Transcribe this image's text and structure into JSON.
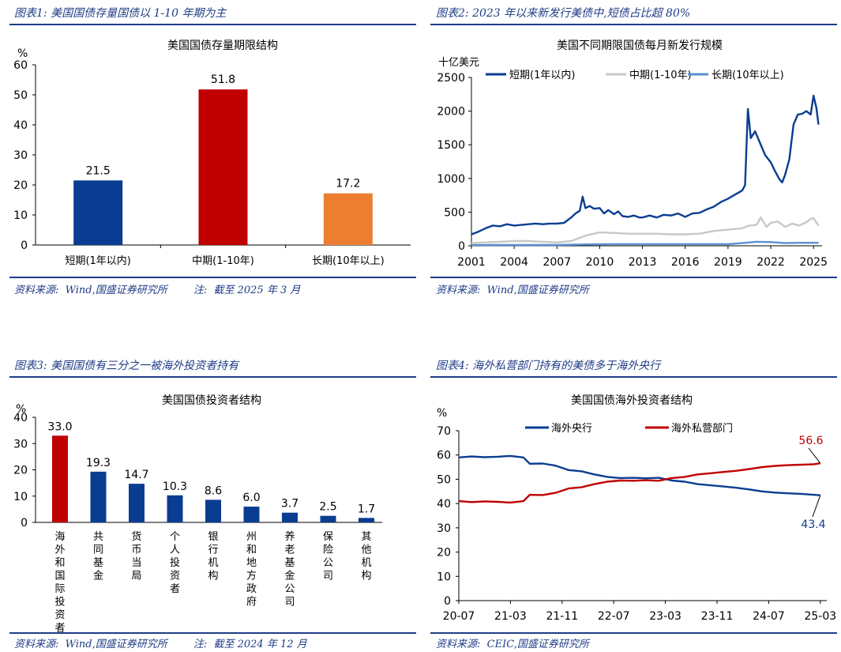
{
  "panels": [
    {
      "heading": "图表1:  美国国债存量国债以 1-10 年期为主",
      "source": "资料来源:  Wind,国盛证券研究所        注:  截至 2025 年 3 月"
    },
    {
      "heading": "图表2:  2023 年以来新发行美债中,短债占比超 80%",
      "source": "资料来源:  Wind,国盛证券研究所"
    },
    {
      "heading": "图表3:  美国国债有三分之一被海外投资者持有",
      "source": "资料来源:  Wind,国盛证券研究所        注:  截至 2024 年 12 月"
    },
    {
      "heading": "图表4:  海外私营部门持有的美债多于海外央行",
      "source": "资料来源:  CEIC,国盛证券研究所"
    }
  ],
  "chart_data": [
    {
      "type": "bar",
      "title": "美国国债存量期限结构",
      "ylabel": "%",
      "ylim": [
        0,
        60
      ],
      "yticks": [
        0,
        10,
        20,
        30,
        40,
        50,
        60
      ],
      "categories": [
        "短期(1年以内)",
        "中期(1-10年)",
        "长期(10年以上)"
      ],
      "values": [
        21.5,
        51.8,
        17.2
      ],
      "colors": [
        "#0a3d91",
        "#c00000",
        "#ed7d31"
      ],
      "grid": false
    },
    {
      "type": "line",
      "title": "美国不同期限国债每月新发行规模",
      "ylabel": "十亿美元",
      "ylim": [
        0,
        2500
      ],
      "yticks": [
        0,
        500,
        1000,
        1500,
        2000,
        2500
      ],
      "xlim": [
        2001,
        2025.6
      ],
      "xticks": [
        2001,
        2004,
        2007,
        2010,
        2013,
        2016,
        2019,
        2022,
        2025
      ],
      "legend": "top",
      "series": [
        {
          "name": "短期(1年以内)",
          "color": "#0a3d91",
          "points": [
            [
              2001,
              170
            ],
            [
              2001.5,
              210
            ],
            [
              2002,
              260
            ],
            [
              2002.5,
              300
            ],
            [
              2003,
              290
            ],
            [
              2003.5,
              320
            ],
            [
              2004,
              300
            ],
            [
              2004.5,
              310
            ],
            [
              2005,
              320
            ],
            [
              2005.5,
              330
            ],
            [
              2006,
              320
            ],
            [
              2006.5,
              330
            ],
            [
              2007,
              330
            ],
            [
              2007.5,
              340
            ],
            [
              2008,
              420
            ],
            [
              2008.3,
              480
            ],
            [
              2008.6,
              520
            ],
            [
              2008.8,
              730
            ],
            [
              2009,
              560
            ],
            [
              2009.3,
              590
            ],
            [
              2009.6,
              550
            ],
            [
              2010,
              560
            ],
            [
              2010.3,
              480
            ],
            [
              2010.6,
              530
            ],
            [
              2011,
              470
            ],
            [
              2011.3,
              510
            ],
            [
              2011.6,
              440
            ],
            [
              2012,
              430
            ],
            [
              2012.4,
              450
            ],
            [
              2012.8,
              420
            ],
            [
              2013,
              420
            ],
            [
              2013.5,
              450
            ],
            [
              2014,
              420
            ],
            [
              2014.5,
              460
            ],
            [
              2015,
              450
            ],
            [
              2015.5,
              480
            ],
            [
              2016,
              430
            ],
            [
              2016.5,
              480
            ],
            [
              2017,
              490
            ],
            [
              2017.5,
              540
            ],
            [
              2018,
              580
            ],
            [
              2018.5,
              650
            ],
            [
              2019,
              700
            ],
            [
              2019.5,
              760
            ],
            [
              2020,
              820
            ],
            [
              2020.2,
              900
            ],
            [
              2020.4,
              2030
            ],
            [
              2020.6,
              1600
            ],
            [
              2020.9,
              1700
            ],
            [
              2021.2,
              1550
            ],
            [
              2021.6,
              1350
            ],
            [
              2022,
              1240
            ],
            [
              2022.3,
              1110
            ],
            [
              2022.6,
              990
            ],
            [
              2022.8,
              940
            ],
            [
              2023.0,
              1050
            ],
            [
              2023.3,
              1280
            ],
            [
              2023.6,
              1800
            ],
            [
              2023.9,
              1950
            ],
            [
              2024.2,
              1960
            ],
            [
              2024.5,
              2000
            ],
            [
              2024.8,
              1950
            ],
            [
              2025.0,
              2230
            ],
            [
              2025.2,
              2050
            ],
            [
              2025.35,
              1800
            ]
          ]
        },
        {
          "name": "中期(1-10年)",
          "color": "#c8c8c8",
          "points": [
            [
              2001,
              40
            ],
            [
              2002,
              50
            ],
            [
              2003,
              60
            ],
            [
              2004,
              70
            ],
            [
              2005,
              70
            ],
            [
              2006,
              60
            ],
            [
              2007,
              50
            ],
            [
              2008,
              70
            ],
            [
              2009,
              150
            ],
            [
              2010,
              200
            ],
            [
              2011,
              190
            ],
            [
              2012,
              180
            ],
            [
              2013,
              180
            ],
            [
              2014,
              180
            ],
            [
              2015,
              170
            ],
            [
              2016,
              170
            ],
            [
              2017,
              180
            ],
            [
              2018,
              220
            ],
            [
              2019,
              240
            ],
            [
              2020,
              260
            ],
            [
              2020.5,
              300
            ],
            [
              2021,
              310
            ],
            [
              2021.3,
              420
            ],
            [
              2021.7,
              280
            ],
            [
              2022,
              340
            ],
            [
              2022.5,
              360
            ],
            [
              2023,
              280
            ],
            [
              2023.5,
              330
            ],
            [
              2024,
              300
            ],
            [
              2024.5,
              350
            ],
            [
              2024.8,
              400
            ],
            [
              2025.0,
              410
            ],
            [
              2025.35,
              300
            ]
          ]
        },
        {
          "name": "长期(10年以上)",
          "color": "#5b8fd0",
          "points": [
            [
              2001,
              10
            ],
            [
              2003,
              12
            ],
            [
              2005,
              12
            ],
            [
              2007,
              12
            ],
            [
              2009,
              20
            ],
            [
              2011,
              25
            ],
            [
              2013,
              25
            ],
            [
              2015,
              25
            ],
            [
              2017,
              25
            ],
            [
              2019,
              25
            ],
            [
              2020,
              40
            ],
            [
              2021,
              60
            ],
            [
              2022,
              55
            ],
            [
              2023,
              40
            ],
            [
              2024,
              45
            ],
            [
              2025,
              45
            ],
            [
              2025.35,
              45
            ]
          ]
        }
      ]
    },
    {
      "type": "bar",
      "title": "美国国债投资者结构",
      "ylabel": "%",
      "ylim": [
        0,
        40
      ],
      "yticks": [
        0,
        10,
        20,
        30,
        40
      ],
      "categories": [
        "海外和国际投资者",
        "共同基金",
        "货币当局",
        "个人投资者",
        "银行机构",
        "州和地方政府",
        "养老基金公司",
        "保险公司",
        "其他机构"
      ],
      "values": [
        33.0,
        19.3,
        14.7,
        10.3,
        8.6,
        6.0,
        3.7,
        2.5,
        1.7
      ],
      "value_labels": [
        "33.0",
        "19.3",
        "14.7",
        "10.3",
        "8.6",
        "6.0",
        "3.7",
        "2.5",
        "1.7"
      ],
      "colors": [
        "#c00000",
        "#0a3d91",
        "#0a3d91",
        "#0a3d91",
        "#0a3d91",
        "#0a3d91",
        "#0a3d91",
        "#0a3d91",
        "#0a3d91"
      ],
      "grid": false
    },
    {
      "type": "line",
      "title": "美国国债海外投资者结构",
      "ylabel": "%",
      "ylim": [
        0,
        70
      ],
      "yticks": [
        0,
        10,
        20,
        30,
        40,
        50,
        60,
        70
      ],
      "xticks": [
        "20-07",
        "21-03",
        "21-11",
        "22-07",
        "23-03",
        "23-11",
        "24-07",
        "25-03"
      ],
      "xlim": [
        0,
        57
      ],
      "legend": "top",
      "annotations": [
        "56.6",
        "43.4"
      ],
      "series": [
        {
          "name": "海外央行",
          "color": "#0a3d91",
          "points": [
            [
              0,
              59.0
            ],
            [
              2,
              59.4
            ],
            [
              4,
              59.1
            ],
            [
              6,
              59.3
            ],
            [
              8,
              59.6
            ],
            [
              10,
              59.0
            ],
            [
              11,
              56.4
            ],
            [
              13,
              56.5
            ],
            [
              15,
              55.6
            ],
            [
              17,
              53.8
            ],
            [
              19,
              53.3
            ],
            [
              21,
              52.0
            ],
            [
              23,
              51.0
            ],
            [
              25,
              50.5
            ],
            [
              27,
              50.6
            ],
            [
              29,
              50.4
            ],
            [
              31,
              50.6
            ],
            [
              33,
              49.5
            ],
            [
              35,
              49.0
            ],
            [
              37,
              48.0
            ],
            [
              39,
              47.5
            ],
            [
              41,
              47.0
            ],
            [
              43,
              46.5
            ],
            [
              45,
              45.8
            ],
            [
              47,
              45.0
            ],
            [
              49,
              44.5
            ],
            [
              51,
              44.2
            ],
            [
              53,
              44.0
            ],
            [
              55,
              43.6
            ],
            [
              56,
              43.4
            ]
          ]
        },
        {
          "name": "海外私营部门",
          "color": "#c00000",
          "points": [
            [
              0,
              41.0
            ],
            [
              2,
              40.6
            ],
            [
              4,
              40.9
            ],
            [
              6,
              40.7
            ],
            [
              8,
              40.4
            ],
            [
              10,
              41.0
            ],
            [
              11,
              43.6
            ],
            [
              13,
              43.5
            ],
            [
              15,
              44.4
            ],
            [
              17,
              46.2
            ],
            [
              19,
              46.7
            ],
            [
              21,
              48.0
            ],
            [
              23,
              49.0
            ],
            [
              25,
              49.5
            ],
            [
              27,
              49.4
            ],
            [
              29,
              49.6
            ],
            [
              31,
              49.4
            ],
            [
              33,
              50.5
            ],
            [
              35,
              51.0
            ],
            [
              37,
              52.0
            ],
            [
              39,
              52.5
            ],
            [
              41,
              53.0
            ],
            [
              43,
              53.5
            ],
            [
              45,
              54.2
            ],
            [
              47,
              55.0
            ],
            [
              49,
              55.5
            ],
            [
              51,
              55.8
            ],
            [
              53,
              56.0
            ],
            [
              55,
              56.2
            ],
            [
              56,
              56.6
            ]
          ]
        }
      ]
    }
  ]
}
